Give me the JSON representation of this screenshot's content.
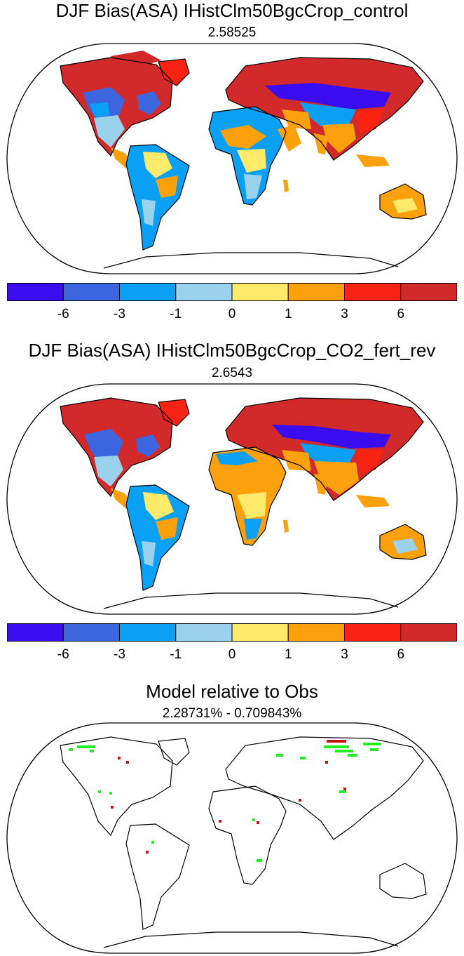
{
  "panels": [
    {
      "title": "DJF Bias(ASA) IHistClm50BgcCrop_control",
      "subtitle": "2.58525"
    },
    {
      "title": "DJF Bias(ASA) IHistClm50BgcCrop_CO2_fert_rev",
      "subtitle": "2.6543"
    },
    {
      "title": "Model relative to Obs",
      "subtitle": "2.28731% - 0.709843%"
    }
  ],
  "colorbar": {
    "colors": [
      "#3a0cf0",
      "#3c66e0",
      "#0aa0f5",
      "#9ad2ee",
      "#fdea6a",
      "#fca00c",
      "#fa2212",
      "#d22a2a"
    ],
    "labels": [
      "-6",
      "-3",
      "-1",
      "0",
      "1",
      "3",
      "6"
    ]
  },
  "difference_colors": {
    "increase": "#22ee22",
    "decrease": "#cc1111"
  }
}
